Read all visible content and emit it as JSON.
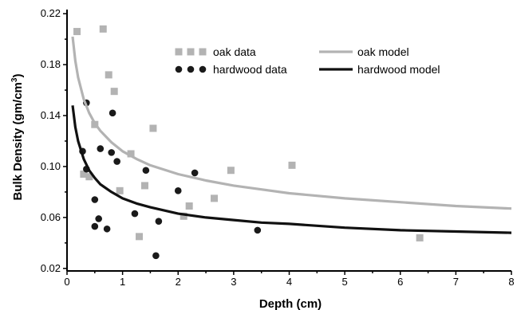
{
  "chart_data": {
    "type": "scatter",
    "xlabel": "Depth (cm)",
    "ylabel_main": "Bulk Density (gm/cm",
    "ylabel_sup": "3",
    "ylabel_end": ")",
    "xlim": [
      0,
      8
    ],
    "ylim": [
      0.018,
      0.222
    ],
    "x_ticks": [
      0,
      1,
      2,
      3,
      4,
      5,
      6,
      7,
      8
    ],
    "x_tick_labels": [
      "0",
      "1",
      "2",
      "3",
      "4",
      "5",
      "6",
      "7",
      "8"
    ],
    "y_ticks": [
      0.02,
      0.06,
      0.1,
      0.14,
      0.18,
      0.22
    ],
    "y_tick_labels": [
      "0.02",
      "0.06",
      "0.10",
      "0.14",
      "0.18",
      "0.22"
    ],
    "grid": false,
    "legend_placement": "top-right",
    "series": [
      {
        "name": "oak data",
        "kind": "points",
        "marker": "square",
        "color": "#b3b3b3",
        "points": [
          [
            0.18,
            0.206
          ],
          [
            0.65,
            0.208
          ],
          [
            0.75,
            0.172
          ],
          [
            0.85,
            0.159
          ],
          [
            0.5,
            0.133
          ],
          [
            1.55,
            0.13
          ],
          [
            1.15,
            0.11
          ],
          [
            0.95,
            0.081
          ],
          [
            0.3,
            0.094
          ],
          [
            0.4,
            0.092
          ],
          [
            1.4,
            0.085
          ],
          [
            1.3,
            0.045
          ],
          [
            2.1,
            0.061
          ],
          [
            2.2,
            0.069
          ],
          [
            2.65,
            0.075
          ],
          [
            2.95,
            0.097
          ],
          [
            4.05,
            0.101
          ],
          [
            6.35,
            0.044
          ]
        ]
      },
      {
        "name": "hardwood data",
        "kind": "points",
        "marker": "circle",
        "color": "#1a1a1a",
        "points": [
          [
            0.35,
            0.15
          ],
          [
            0.82,
            0.142
          ],
          [
            0.28,
            0.112
          ],
          [
            0.6,
            0.114
          ],
          [
            0.8,
            0.111
          ],
          [
            0.9,
            0.104
          ],
          [
            0.35,
            0.098
          ],
          [
            1.42,
            0.097
          ],
          [
            2.3,
            0.095
          ],
          [
            0.5,
            0.074
          ],
          [
            2.0,
            0.081
          ],
          [
            1.22,
            0.063
          ],
          [
            0.57,
            0.059
          ],
          [
            0.5,
            0.053
          ],
          [
            0.72,
            0.051
          ],
          [
            1.65,
            0.057
          ],
          [
            1.6,
            0.03
          ],
          [
            3.43,
            0.05
          ]
        ]
      },
      {
        "name": "oak model",
        "kind": "line",
        "color": "#b3b3b3",
        "points": [
          [
            0.1,
            0.202
          ],
          [
            0.15,
            0.183
          ],
          [
            0.2,
            0.17
          ],
          [
            0.3,
            0.153
          ],
          [
            0.4,
            0.142
          ],
          [
            0.5,
            0.134
          ],
          [
            0.6,
            0.128
          ],
          [
            0.8,
            0.119
          ],
          [
            1.0,
            0.112
          ],
          [
            1.25,
            0.106
          ],
          [
            1.5,
            0.101
          ],
          [
            2.0,
            0.094
          ],
          [
            2.5,
            0.089
          ],
          [
            3.0,
            0.085
          ],
          [
            3.5,
            0.082
          ],
          [
            4.0,
            0.079
          ],
          [
            5.0,
            0.075
          ],
          [
            6.0,
            0.072
          ],
          [
            7.0,
            0.069
          ],
          [
            8.0,
            0.067
          ]
        ]
      },
      {
        "name": "hardwood model",
        "kind": "line",
        "color": "#111111",
        "points": [
          [
            0.1,
            0.148
          ],
          [
            0.15,
            0.131
          ],
          [
            0.2,
            0.12
          ],
          [
            0.3,
            0.106
          ],
          [
            0.4,
            0.097
          ],
          [
            0.5,
            0.091
          ],
          [
            0.6,
            0.086
          ],
          [
            0.8,
            0.08
          ],
          [
            1.0,
            0.075
          ],
          [
            1.25,
            0.071
          ],
          [
            1.5,
            0.068
          ],
          [
            2.0,
            0.063
          ],
          [
            2.5,
            0.06
          ],
          [
            3.0,
            0.058
          ],
          [
            3.5,
            0.056
          ],
          [
            4.0,
            0.055
          ],
          [
            5.0,
            0.052
          ],
          [
            6.0,
            0.05
          ],
          [
            7.0,
            0.049
          ],
          [
            8.0,
            0.048
          ]
        ]
      }
    ]
  }
}
